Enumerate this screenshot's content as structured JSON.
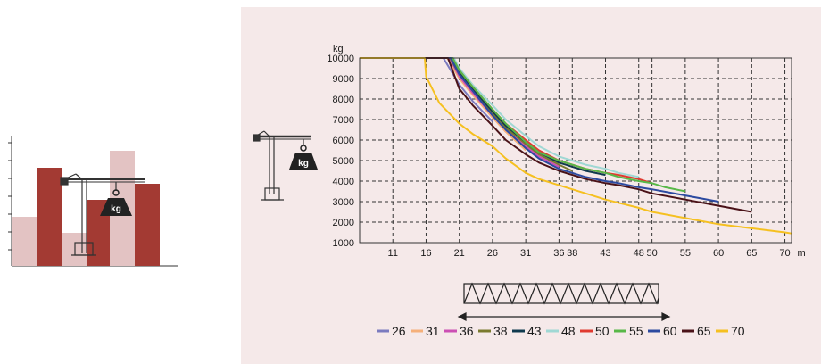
{
  "thumbnail": {
    "weight_label": "kg",
    "colors": {
      "dark_bar": "#a33a33",
      "light_bar": "#e3c3c3",
      "crane": "#333333"
    }
  },
  "chart_icon": {
    "weight_label": "kg"
  },
  "chart_data": {
    "type": "line",
    "title": "",
    "ylabel": "kg",
    "xlabel": "m",
    "x_unit": "m",
    "ylim": [
      1000,
      10000
    ],
    "xlim": [
      6,
      71
    ],
    "y_ticks": [
      1000,
      2000,
      3000,
      4000,
      5000,
      6000,
      7000,
      8000,
      9000,
      10000
    ],
    "x_tick_labels": [
      "11",
      "16",
      "21",
      "26",
      "31",
      "36",
      "38",
      "43",
      "48",
      "50",
      "55",
      "60",
      "65",
      "70"
    ],
    "x_tick_values": [
      11,
      16,
      21,
      26,
      31,
      36,
      38,
      43,
      48,
      50,
      55,
      60,
      65,
      70
    ],
    "grid": true,
    "legend_position": "bottom",
    "series": [
      {
        "name": "26",
        "color": "#7b7bbf",
        "x": [
          6,
          18.6,
          21,
          23,
          26
        ],
        "y": [
          10000,
          10000,
          8700,
          7900,
          6900
        ]
      },
      {
        "name": "31",
        "color": "#f5b07a",
        "x": [
          6,
          19.2,
          21,
          23,
          26,
          28,
          31
        ],
        "y": [
          10000,
          10000,
          9000,
          8200,
          7100,
          6400,
          5500
        ]
      },
      {
        "name": "36",
        "color": "#cc4fb4",
        "x": [
          6,
          19.5,
          21,
          23,
          26,
          28,
          31,
          33,
          36
        ],
        "y": [
          10000,
          10000,
          9100,
          8300,
          7200,
          6500,
          5700,
          5200,
          4700
        ]
      },
      {
        "name": "38",
        "color": "#7a7a2e",
        "x": [
          6,
          19.6,
          21,
          23,
          26,
          28,
          31,
          33,
          36,
          38
        ],
        "y": [
          10000,
          10000,
          9200,
          8400,
          7300,
          6600,
          5800,
          5300,
          4800,
          4500
        ]
      },
      {
        "name": "43",
        "color": "#103a4e",
        "x": [
          6,
          19.8,
          21,
          23,
          26,
          28,
          31,
          33,
          36,
          38,
          40,
          43
        ],
        "y": [
          10000,
          10000,
          9300,
          8500,
          7400,
          6700,
          5900,
          5400,
          4900,
          4700,
          4500,
          4300
        ]
      },
      {
        "name": "48",
        "color": "#9fd8d4",
        "x": [
          6,
          20.2,
          21,
          23,
          26,
          28,
          31,
          33,
          36,
          38,
          40,
          43,
          45,
          48
        ],
        "y": [
          10000,
          10000,
          9500,
          8700,
          7700,
          7000,
          6200,
          5700,
          5200,
          5000,
          4800,
          4600,
          4400,
          4200
        ]
      },
      {
        "name": "50",
        "color": "#e03a30",
        "x": [
          6,
          20,
          21,
          23,
          26,
          28,
          31,
          33,
          36,
          38,
          40,
          43,
          45,
          48,
          50
        ],
        "y": [
          10000,
          10000,
          9400,
          8600,
          7500,
          6800,
          6000,
          5500,
          5000,
          4800,
          4600,
          4400,
          4300,
          4100,
          3900
        ]
      },
      {
        "name": "55",
        "color": "#58b848",
        "x": [
          6,
          20,
          21,
          23,
          26,
          28,
          31,
          33,
          36,
          38,
          40,
          43,
          45,
          48,
          50,
          52,
          55
        ],
        "y": [
          10000,
          10000,
          9400,
          8600,
          7500,
          6800,
          5900,
          5400,
          5000,
          4800,
          4600,
          4400,
          4200,
          4000,
          3900,
          3700,
          3500
        ]
      },
      {
        "name": "60",
        "color": "#2c4aa0",
        "x": [
          6,
          19.7,
          21,
          23,
          26,
          28,
          31,
          33,
          36,
          38,
          40,
          43,
          45,
          48,
          50,
          55,
          60
        ],
        "y": [
          10000,
          10000,
          9200,
          8400,
          7200,
          6500,
          5600,
          5100,
          4600,
          4400,
          4200,
          4000,
          3900,
          3700,
          3600,
          3300,
          3000
        ]
      },
      {
        "name": "65",
        "color": "#4a1218",
        "x": [
          6,
          19.3,
          21,
          23,
          26,
          28,
          31,
          33,
          36,
          38,
          40,
          43,
          45,
          48,
          50,
          55,
          60,
          65
        ],
        "y": [
          10000,
          10000,
          8500,
          7700,
          6700,
          6000,
          5300,
          4900,
          4500,
          4300,
          4100,
          3900,
          3800,
          3600,
          3400,
          3100,
          2800,
          2500
        ]
      },
      {
        "name": "70",
        "color": "#f5c020",
        "x": [
          6,
          15.8,
          16,
          18,
          21,
          23,
          26,
          28,
          31,
          33,
          36,
          38,
          43,
          48,
          50,
          55,
          60,
          65,
          70,
          71
        ],
        "y": [
          10000,
          10000,
          9100,
          7800,
          6800,
          6300,
          5700,
          5100,
          4400,
          4100,
          3800,
          3600,
          3100,
          2700,
          2500,
          2200,
          1900,
          1700,
          1500,
          1450
        ]
      }
    ]
  }
}
